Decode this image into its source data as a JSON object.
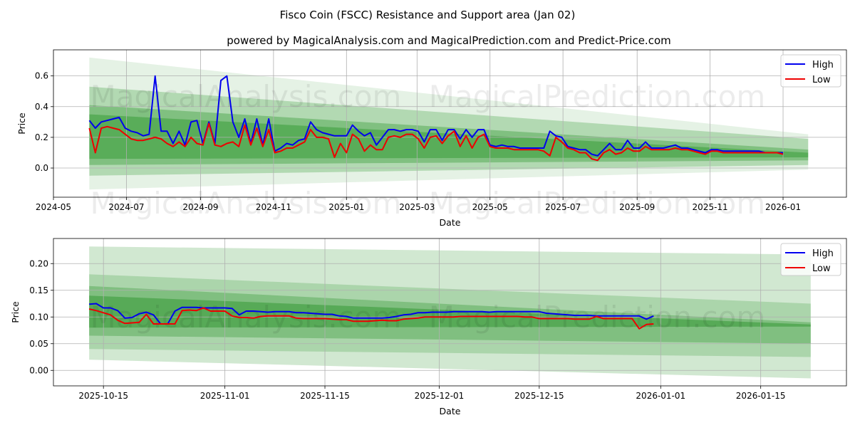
{
  "title": "Fisco Coin (FSCC) Resistance and Support area (Jan 02)",
  "subtitle": "powered by MagicalAnalysis.com and MagicalPrediction.com and Predict-Price.com",
  "watermark": "MagicalAnalysis.com   MagicalPrediction.com",
  "colors": {
    "high": "#0000ee",
    "low": "#ee0000",
    "band": "#008000"
  },
  "chart_data": [
    {
      "type": "line",
      "xlabel": "Date",
      "ylabel": "Price",
      "xlim": [
        "2024-05-01",
        "2026-02-23"
      ],
      "ylim": [
        -0.19,
        0.77
      ],
      "grid": true,
      "legend": "top-right",
      "xticks": [
        "2024-05",
        "2024-07",
        "2024-09",
        "2024-11",
        "2025-01",
        "2025-03",
        "2025-05",
        "2025-07",
        "2025-09",
        "2025-11",
        "2026-01"
      ],
      "yticks": [
        "0.0",
        "0.2",
        "0.4",
        "0.6"
      ],
      "bands": [
        {
          "start": "2024-05-31",
          "end": "2026-01-22",
          "upper": [
            0.72,
            0.22
          ],
          "lower": [
            -0.14,
            -0.01
          ],
          "alpha": 0.1
        },
        {
          "start": "2024-05-31",
          "end": "2026-01-22",
          "upper": [
            0.53,
            0.19
          ],
          "lower": [
            -0.05,
            0.02
          ],
          "alpha": 0.22
        },
        {
          "start": "2024-05-31",
          "end": "2026-01-22",
          "upper": [
            0.41,
            0.12
          ],
          "lower": [
            0.02,
            0.05
          ],
          "alpha": 0.28
        },
        {
          "start": "2024-05-31",
          "end": "2026-01-22",
          "upper": [
            0.35,
            0.1
          ],
          "lower": [
            0.06,
            0.07
          ],
          "alpha": 0.3
        }
      ],
      "series_start": "2024-05-31",
      "series_step_days": 5,
      "series": [
        {
          "name": "High",
          "values": [
            0.31,
            0.26,
            0.3,
            0.31,
            0.32,
            0.33,
            0.26,
            0.24,
            0.23,
            0.21,
            0.22,
            0.6,
            0.24,
            0.24,
            0.16,
            0.24,
            0.15,
            0.3,
            0.31,
            0.16,
            0.3,
            0.16,
            0.57,
            0.6,
            0.3,
            0.2,
            0.32,
            0.16,
            0.32,
            0.15,
            0.32,
            0.11,
            0.13,
            0.16,
            0.15,
            0.18,
            0.19,
            0.3,
            0.25,
            0.23,
            0.22,
            0.21,
            0.21,
            0.21,
            0.28,
            0.24,
            0.21,
            0.23,
            0.15,
            0.2,
            0.25,
            0.25,
            0.24,
            0.25,
            0.25,
            0.24,
            0.17,
            0.25,
            0.25,
            0.18,
            0.25,
            0.25,
            0.19,
            0.25,
            0.2,
            0.25,
            0.25,
            0.15,
            0.14,
            0.15,
            0.14,
            0.14,
            0.13,
            0.13,
            0.13,
            0.13,
            0.13,
            0.24,
            0.21,
            0.2,
            0.14,
            0.13,
            0.12,
            0.12,
            0.09,
            0.08,
            0.12,
            0.16,
            0.12,
            0.12,
            0.18,
            0.13,
            0.13,
            0.17,
            0.13,
            0.13,
            0.13,
            0.14,
            0.15,
            0.13,
            0.13,
            0.12,
            0.11,
            0.1,
            0.12,
            0.12,
            0.11,
            0.11,
            0.11,
            0.11,
            0.11,
            0.11,
            0.11,
            0.1,
            0.1,
            0.1,
            0.1
          ]
        },
        {
          "name": "Low",
          "values": [
            0.26,
            0.1,
            0.26,
            0.27,
            0.26,
            0.25,
            0.22,
            0.19,
            0.18,
            0.18,
            0.19,
            0.2,
            0.19,
            0.16,
            0.14,
            0.17,
            0.14,
            0.2,
            0.16,
            0.15,
            0.29,
            0.15,
            0.14,
            0.16,
            0.17,
            0.14,
            0.28,
            0.15,
            0.26,
            0.14,
            0.25,
            0.1,
            0.11,
            0.13,
            0.13,
            0.15,
            0.17,
            0.25,
            0.2,
            0.2,
            0.19,
            0.07,
            0.16,
            0.1,
            0.22,
            0.19,
            0.11,
            0.15,
            0.12,
            0.12,
            0.2,
            0.21,
            0.2,
            0.22,
            0.22,
            0.19,
            0.13,
            0.2,
            0.21,
            0.16,
            0.21,
            0.24,
            0.14,
            0.21,
            0.13,
            0.2,
            0.22,
            0.14,
            0.13,
            0.13,
            0.13,
            0.12,
            0.12,
            0.12,
            0.12,
            0.12,
            0.11,
            0.08,
            0.2,
            0.17,
            0.13,
            0.12,
            0.1,
            0.1,
            0.06,
            0.05,
            0.1,
            0.12,
            0.09,
            0.1,
            0.13,
            0.11,
            0.11,
            0.14,
            0.12,
            0.12,
            0.12,
            0.12,
            0.13,
            0.12,
            0.12,
            0.11,
            0.1,
            0.09,
            0.11,
            0.11,
            0.1,
            0.1,
            0.1,
            0.1,
            0.1,
            0.1,
            0.1,
            0.1,
            0.1,
            0.1,
            0.09
          ]
        }
      ]
    },
    {
      "type": "line",
      "xlabel": "Date",
      "ylabel": "Price",
      "xlim": [
        "2025-10-08",
        "2026-01-27"
      ],
      "ylim": [
        -0.029,
        0.247
      ],
      "grid": true,
      "legend": "top-right",
      "xticks": [
        "2025-10-15",
        "2025-11-01",
        "2025-11-15",
        "2025-12-01",
        "2025-12-15",
        "2026-01-01",
        "2026-01-15"
      ],
      "yticks": [
        "0.00",
        "0.05",
        "0.10",
        "0.15",
        "0.20"
      ],
      "bands": [
        {
          "start": "2025-10-13",
          "end": "2026-01-22",
          "upper": [
            0.232,
            0.217
          ],
          "lower": [
            0.02,
            -0.015
          ],
          "alpha": 0.18
        },
        {
          "start": "2025-10-13",
          "end": "2026-01-22",
          "upper": [
            0.18,
            0.125
          ],
          "lower": [
            0.04,
            0.025
          ],
          "alpha": 0.18
        },
        {
          "start": "2025-10-13",
          "end": "2026-01-22",
          "upper": [
            0.158,
            0.09
          ],
          "lower": [
            0.065,
            0.05
          ],
          "alpha": 0.25
        },
        {
          "start": "2025-10-13",
          "end": "2026-01-22",
          "upper": [
            0.14,
            0.086
          ],
          "lower": [
            0.08,
            0.082
          ],
          "alpha": 0.32
        }
      ],
      "series_start": "2025-10-13",
      "series_step_days": 1,
      "series": [
        {
          "name": "High",
          "values": [
            0.124,
            0.125,
            0.117,
            0.117,
            0.112,
            0.098,
            0.099,
            0.106,
            0.109,
            0.104,
            0.087,
            0.087,
            0.111,
            0.118,
            0.118,
            0.118,
            0.117,
            0.117,
            0.117,
            0.117,
            0.116,
            0.104,
            0.111,
            0.111,
            0.11,
            0.109,
            0.11,
            0.11,
            0.11,
            0.108,
            0.108,
            0.107,
            0.106,
            0.105,
            0.105,
            0.102,
            0.101,
            0.098,
            0.098,
            0.098,
            0.098,
            0.098,
            0.099,
            0.101,
            0.104,
            0.105,
            0.108,
            0.108,
            0.109,
            0.109,
            0.109,
            0.11,
            0.11,
            0.11,
            0.11,
            0.11,
            0.109,
            0.11,
            0.11,
            0.11,
            0.11,
            0.11,
            0.11,
            0.11,
            0.107,
            0.106,
            0.105,
            0.104,
            0.103,
            0.103,
            0.103,
            0.102,
            0.102,
            0.102,
            0.102,
            0.102,
            0.102,
            0.102,
            0.096,
            0.102
          ]
        },
        {
          "name": "Low",
          "values": [
            0.115,
            0.112,
            0.108,
            0.104,
            0.094,
            0.088,
            0.089,
            0.09,
            0.105,
            0.087,
            0.087,
            0.087,
            0.087,
            0.112,
            0.113,
            0.112,
            0.117,
            0.111,
            0.111,
            0.111,
            0.102,
            0.099,
            0.099,
            0.098,
            0.101,
            0.102,
            0.102,
            0.102,
            0.102,
            0.098,
            0.097,
            0.097,
            0.097,
            0.097,
            0.096,
            0.095,
            0.095,
            0.092,
            0.092,
            0.092,
            0.093,
            0.094,
            0.093,
            0.093,
            0.096,
            0.097,
            0.098,
            0.1,
            0.1,
            0.1,
            0.1,
            0.1,
            0.101,
            0.101,
            0.101,
            0.101,
            0.101,
            0.101,
            0.101,
            0.101,
            0.101,
            0.1,
            0.1,
            0.097,
            0.097,
            0.097,
            0.097,
            0.097,
            0.096,
            0.096,
            0.096,
            0.101,
            0.097,
            0.097,
            0.097,
            0.097,
            0.097,
            0.078,
            0.086,
            0.087
          ]
        }
      ]
    }
  ]
}
